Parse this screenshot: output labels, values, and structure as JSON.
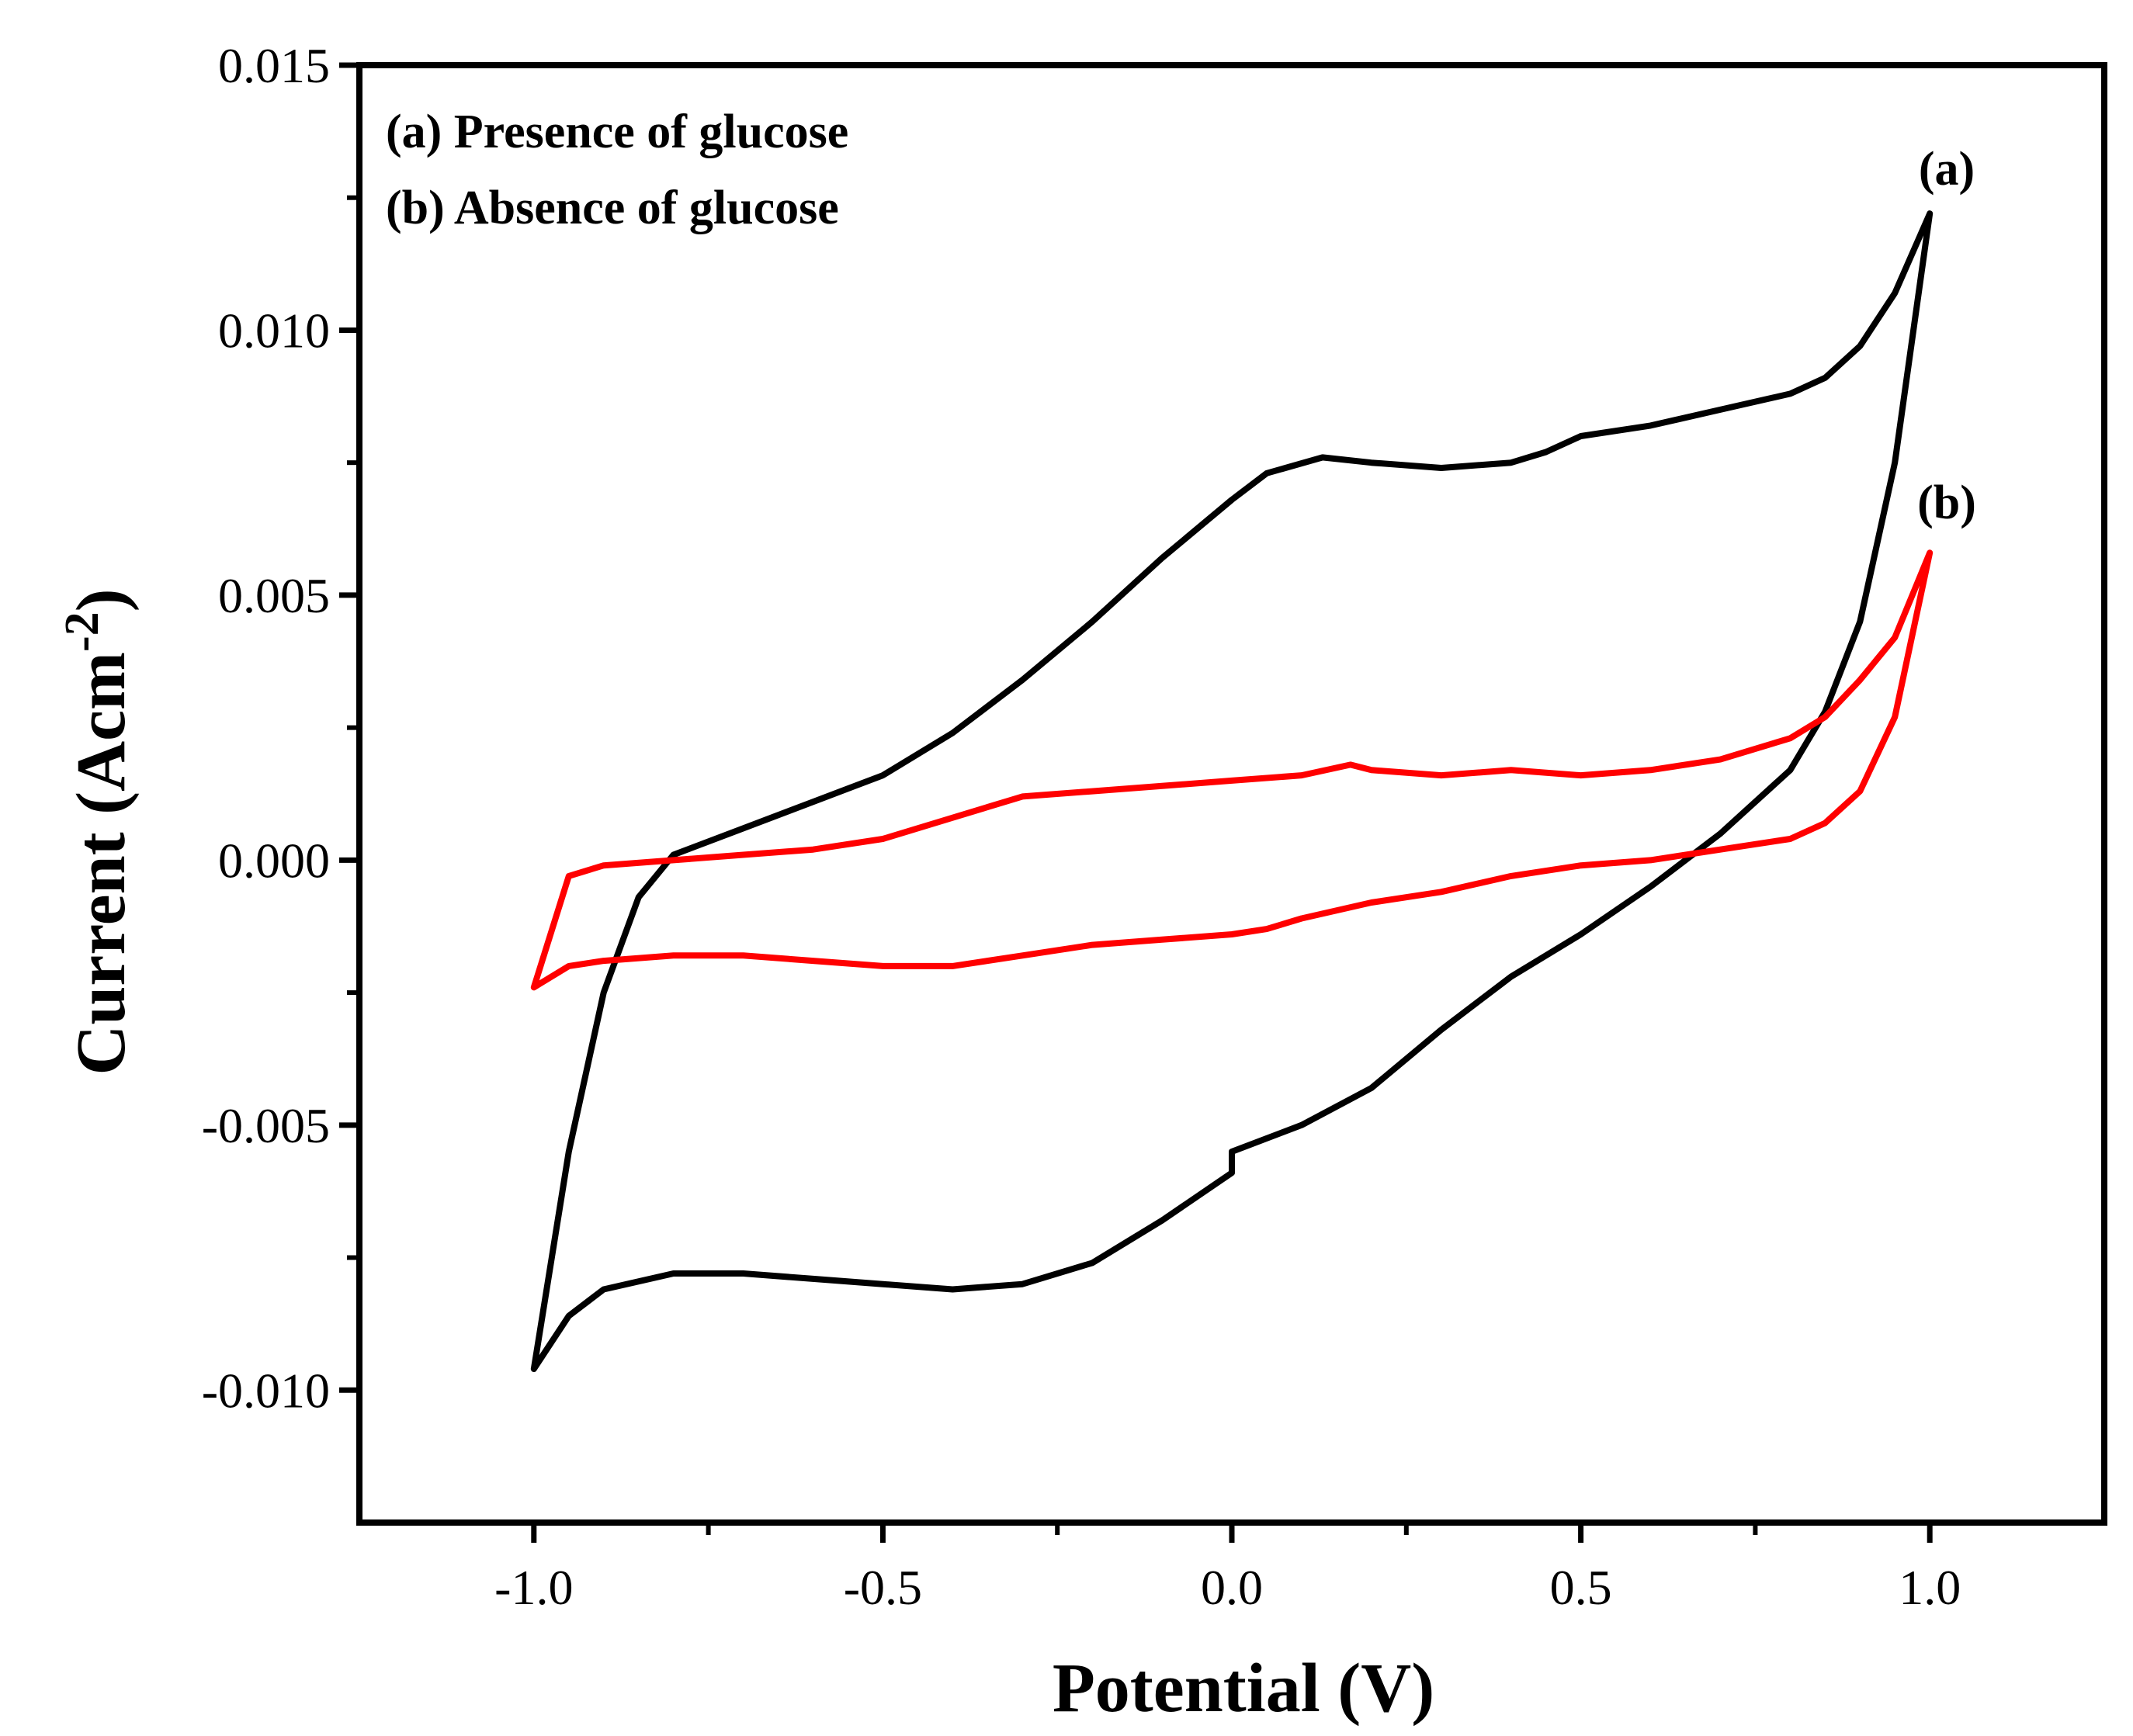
{
  "chart_data": {
    "type": "line",
    "title": "",
    "xlabel": "Potential (V)",
    "ylabel_main": "Current (Acm",
    "ylabel_sup": "-2",
    "ylabel_close": ")",
    "xlim": [
      -1.25,
      1.25
    ],
    "ylim": [
      -0.0125,
      0.015
    ],
    "xticks": [
      -1.0,
      -0.5,
      0.0,
      0.5,
      1.0
    ],
    "xtick_labels": [
      "-1.0",
      "-0.5",
      "0.0",
      "0.5",
      "1.0"
    ],
    "yticks": [
      -0.01,
      -0.005,
      0.0,
      0.005,
      0.01,
      0.015
    ],
    "ytick_labels": [
      "-0.010",
      "-0.005",
      "0.000",
      "0.005",
      "0.010",
      "0.015"
    ],
    "legend": [
      "(a) Presence of glucose",
      "(b) Absence of glucose"
    ],
    "series": [
      {
        "name": "(a) Presence of glucose",
        "label": "(a)",
        "color": "#000000",
        "points": [
          [
            -1.0,
            -0.0096
          ],
          [
            -0.95,
            -0.0086
          ],
          [
            -0.9,
            -0.0081
          ],
          [
            -0.8,
            -0.0078
          ],
          [
            -0.7,
            -0.0078
          ],
          [
            -0.6,
            -0.0079
          ],
          [
            -0.5,
            -0.008
          ],
          [
            -0.4,
            -0.0081
          ],
          [
            -0.3,
            -0.008
          ],
          [
            -0.2,
            -0.0076
          ],
          [
            -0.1,
            -0.0068
          ],
          [
            0.0,
            -0.0059
          ],
          [
            0.0,
            -0.0055
          ],
          [
            0.1,
            -0.005
          ],
          [
            0.2,
            -0.0043
          ],
          [
            0.3,
            -0.0032
          ],
          [
            0.4,
            -0.0022
          ],
          [
            0.5,
            -0.0014
          ],
          [
            0.6,
            -0.0005
          ],
          [
            0.7,
            0.0005
          ],
          [
            0.8,
            0.0017
          ],
          [
            0.85,
            0.0028
          ],
          [
            0.9,
            0.0045
          ],
          [
            0.95,
            0.0075
          ],
          [
            1.0,
            0.0122
          ],
          [
            0.95,
            0.0107
          ],
          [
            0.9,
            0.0097
          ],
          [
            0.85,
            0.0091
          ],
          [
            0.8,
            0.0088
          ],
          [
            0.7,
            0.0085
          ],
          [
            0.6,
            0.0082
          ],
          [
            0.5,
            0.008
          ],
          [
            0.45,
            0.0077
          ],
          [
            0.4,
            0.0075
          ],
          [
            0.3,
            0.0074
          ],
          [
            0.2,
            0.0075
          ],
          [
            0.13,
            0.0076
          ],
          [
            0.05,
            0.0073
          ],
          [
            0.0,
            0.0068
          ],
          [
            -0.1,
            0.0057
          ],
          [
            -0.2,
            0.0045
          ],
          [
            -0.3,
            0.0034
          ],
          [
            -0.4,
            0.0024
          ],
          [
            -0.5,
            0.0016
          ],
          [
            -0.6,
            0.0011
          ],
          [
            -0.7,
            0.0006
          ],
          [
            -0.8,
            0.0001
          ],
          [
            -0.85,
            -0.0007
          ],
          [
            -0.9,
            -0.0025
          ],
          [
            -0.95,
            -0.0055
          ],
          [
            -1.0,
            -0.0096
          ]
        ]
      },
      {
        "name": "(b) Absence of glucose",
        "label": "(b)",
        "color": "#ff0000",
        "points": [
          [
            -1.0,
            -0.0024
          ],
          [
            -0.95,
            -0.002
          ],
          [
            -0.9,
            -0.0019
          ],
          [
            -0.8,
            -0.0018
          ],
          [
            -0.7,
            -0.0018
          ],
          [
            -0.6,
            -0.0019
          ],
          [
            -0.5,
            -0.002
          ],
          [
            -0.4,
            -0.002
          ],
          [
            -0.3,
            -0.0018
          ],
          [
            -0.2,
            -0.0016
          ],
          [
            -0.1,
            -0.0015
          ],
          [
            0.0,
            -0.0014
          ],
          [
            0.05,
            -0.0013
          ],
          [
            0.1,
            -0.0011
          ],
          [
            0.2,
            -0.0008
          ],
          [
            0.3,
            -0.0006
          ],
          [
            0.4,
            -0.0003
          ],
          [
            0.5,
            -0.0001
          ],
          [
            0.6,
            0.0
          ],
          [
            0.7,
            0.0002
          ],
          [
            0.8,
            0.0004
          ],
          [
            0.85,
            0.0007
          ],
          [
            0.9,
            0.0013
          ],
          [
            0.95,
            0.0027
          ],
          [
            1.0,
            0.0058
          ],
          [
            0.95,
            0.0042
          ],
          [
            0.9,
            0.0034
          ],
          [
            0.85,
            0.0027
          ],
          [
            0.8,
            0.0023
          ],
          [
            0.7,
            0.0019
          ],
          [
            0.6,
            0.0017
          ],
          [
            0.5,
            0.0016
          ],
          [
            0.4,
            0.0017
          ],
          [
            0.3,
            0.0016
          ],
          [
            0.2,
            0.0017
          ],
          [
            0.17,
            0.0018
          ],
          [
            0.1,
            0.0016
          ],
          [
            0.0,
            0.0015
          ],
          [
            -0.1,
            0.0014
          ],
          [
            -0.2,
            0.0013
          ],
          [
            -0.3,
            0.0012
          ],
          [
            -0.4,
            0.0008
          ],
          [
            -0.5,
            0.0004
          ],
          [
            -0.6,
            0.0002
          ],
          [
            -0.7,
            0.0001
          ],
          [
            -0.8,
            0.0
          ],
          [
            -0.9,
            -0.0001
          ],
          [
            -0.95,
            -0.0003
          ],
          [
            -1.0,
            -0.0024
          ]
        ]
      }
    ]
  }
}
